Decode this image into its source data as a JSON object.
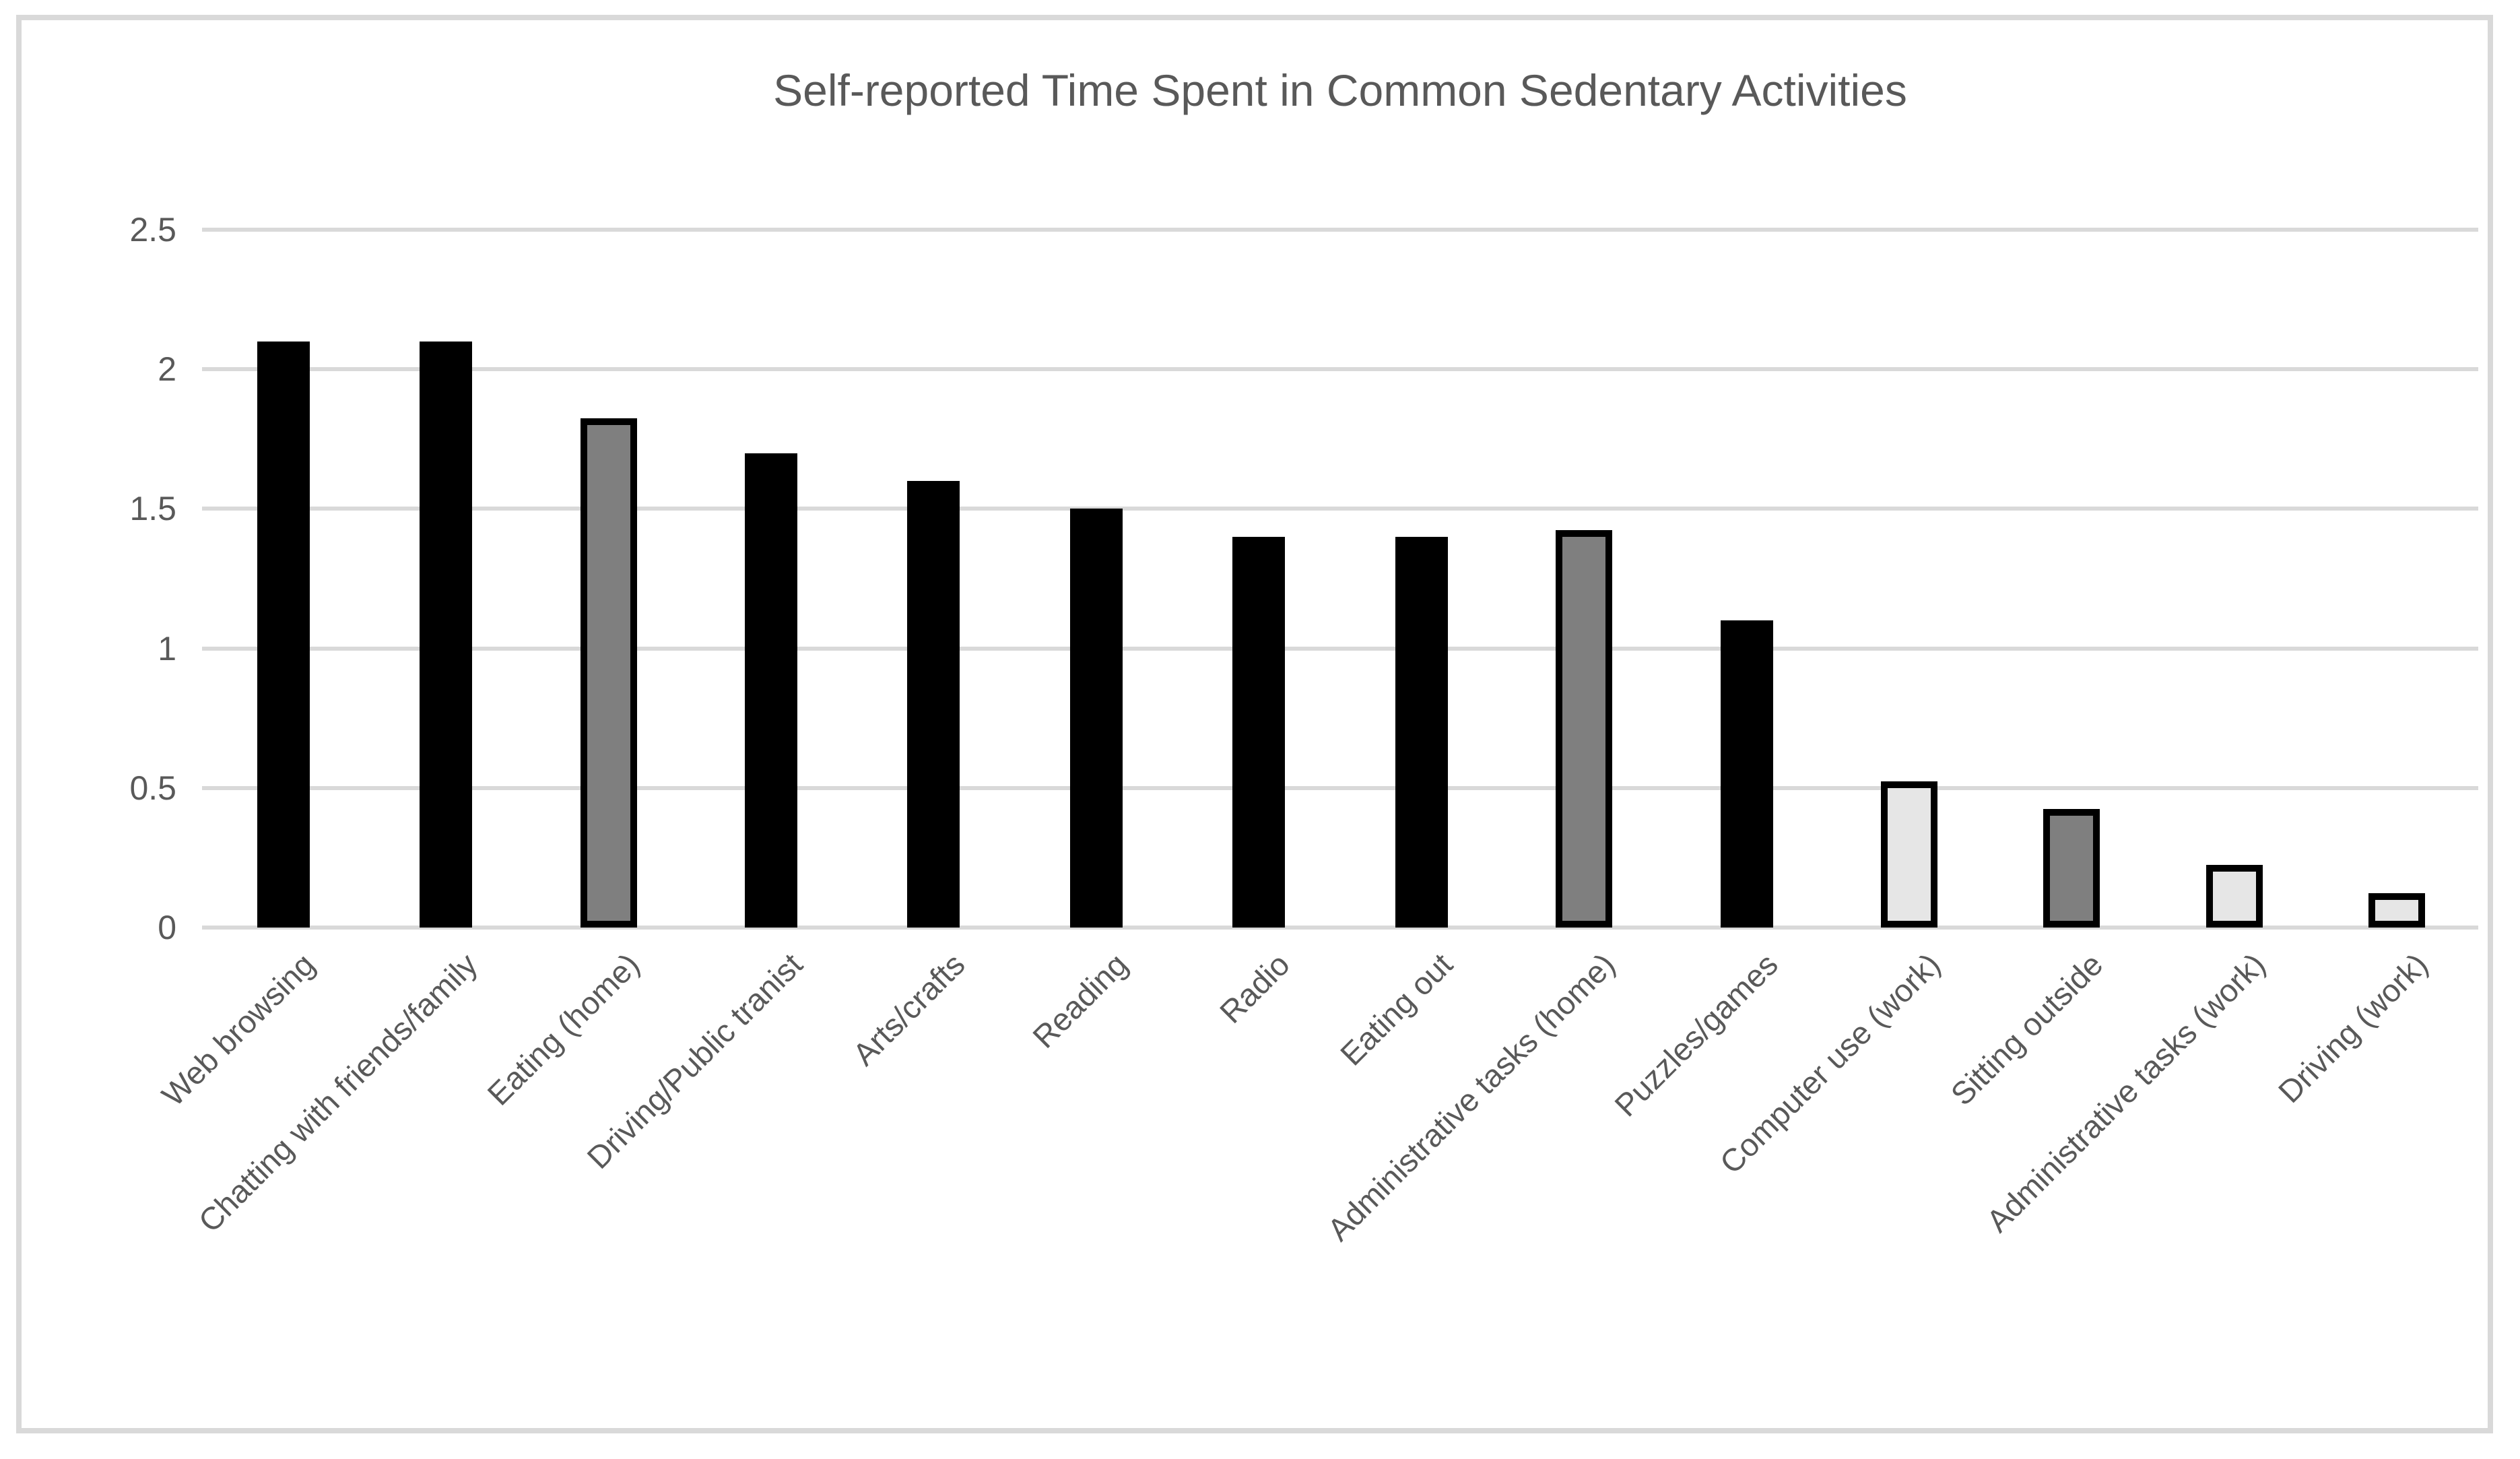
{
  "title": "Self-reported Time Spent in Common Sedentary Activities",
  "chart_data": {
    "type": "bar",
    "title": "Self-reported Time Spent in Common Sedentary Activities",
    "categories": [
      "Web browsing",
      "Chatting with friends/family",
      "Eating (home)",
      "Driving/Public tranist",
      "Arts/crafts",
      "Reading",
      "Radio",
      "Eating out",
      "Administrative tasks (home)",
      "Puzzles/games",
      "Computer use (work)",
      "Sitting outside",
      "Administrative tasks (work)",
      "Driving (work)"
    ],
    "values": [
      2.1,
      2.1,
      1.8,
      1.7,
      1.6,
      1.5,
      1.4,
      1.4,
      1.4,
      1.1,
      0.5,
      0.4,
      0.2,
      0.1
    ],
    "bar_styles": [
      "black",
      "black",
      "gray",
      "black",
      "black",
      "black",
      "black",
      "black",
      "gray",
      "black",
      "light",
      "gray",
      "light",
      "light"
    ],
    "palette": {
      "black": {
        "fill": "#000000",
        "border": "none"
      },
      "gray": {
        "fill": "#7f7f7f",
        "border": "#000000"
      },
      "light": {
        "fill": "#e6e6e6",
        "border": "#000000"
      }
    },
    "xlabel": "",
    "ylabel": "",
    "ylim": [
      0,
      2.5
    ],
    "ytick_values": [
      0,
      0.5,
      1,
      1.5,
      2,
      2.5
    ],
    "ytick_labels": [
      "0",
      "0.5",
      "1",
      "1.5",
      "2",
      "2.5"
    ],
    "grid": true,
    "gridline_color": "#d9d9d9",
    "axis_text_color": "#595959",
    "title_color": "#595959",
    "frame_border_color": "#d9d9d9",
    "legend": "none"
  }
}
